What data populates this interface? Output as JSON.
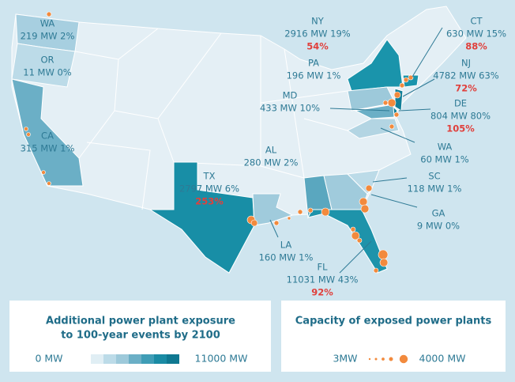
{
  "states": [
    {
      "name": "WA",
      "label": "219 MW 2%"
    },
    {
      "name": "OR",
      "label": "11 MW 0%"
    },
    {
      "name": "CA",
      "label": "315 MW 1%"
    },
    {
      "name": "TX",
      "label": "2797 MW 6%",
      "increase": "253%"
    },
    {
      "name": "LA",
      "label": "160 MW 1%"
    },
    {
      "name": "AL",
      "label": "280 MW 2%"
    },
    {
      "name": "FL",
      "label": "11031 MW 43%",
      "increase": "92%"
    },
    {
      "name": "GA",
      "label": "9 MW 0%"
    },
    {
      "name": "SC",
      "label": "118 MW 1%"
    },
    {
      "name": "WA",
      "label": "60 MW 1%"
    },
    {
      "name": "DE",
      "label": "804 MW 80%",
      "increase": "105%"
    },
    {
      "name": "NJ",
      "label": "4782 MW 63%",
      "increase": "72%"
    },
    {
      "name": "CT",
      "label": "630 MW 15%",
      "increase": "88%"
    },
    {
      "name": "NY",
      "label": "2916 MW 19%",
      "increase": "54%"
    },
    {
      "name": "PA",
      "label": "196 MW 1%"
    },
    {
      "name": "MD",
      "label": "433 MW 10%"
    }
  ],
  "legend_exposure": {
    "title_lines": [
      "Additional power plant exposure",
      "to 100-year events by 2100"
    ],
    "min_label": "0 MW",
    "max_label": "11000 MW"
  },
  "legend_capacity": {
    "title": "Capacity of exposed power plants",
    "min_label": "3MW",
    "max_label": "4000 MW"
  }
}
